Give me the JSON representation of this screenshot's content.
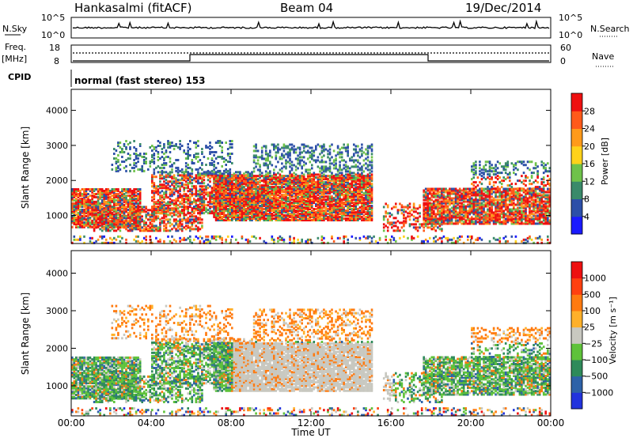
{
  "header": {
    "station": "Hankasalmi (fitACF)",
    "beam": "Beam 04",
    "date": "19/Dec/2014"
  },
  "noise_panel": {
    "left_label": "N.Sky",
    "right_label": "N.Search",
    "left_ticks": [
      "10^5",
      "10^0"
    ],
    "right_ticks": [
      "10^5",
      "10^0"
    ]
  },
  "freq_panel": {
    "left_label_line1": "Freq.",
    "left_label_line2": "[MHz]",
    "left_ticks": [
      "18",
      "8"
    ],
    "right_label": "Nave",
    "right_ticks": [
      "60",
      "0"
    ]
  },
  "cpid": {
    "label": "CPID",
    "value": "normal (fast stereo) 153"
  },
  "x_axis": {
    "label": "Time UT",
    "ticks": [
      "00:00",
      "04:00",
      "08:00",
      "12:00",
      "16:00",
      "20:00",
      "00:00"
    ]
  },
  "chart_data": [
    {
      "type": "heatmap",
      "panel": "power",
      "ylabel": "Slant Range [km]",
      "y_ticks": [
        1000,
        2000,
        3000,
        4000
      ],
      "ylim": [
        200,
        4600
      ],
      "xlim_hours": [
        0,
        24
      ],
      "colorbar_label": "Power [dB]",
      "colorbar_ticks": [
        "28",
        "24",
        "20",
        "16",
        "12",
        "8",
        "4"
      ],
      "colors": [
        "#1a1aff",
        "#2c4fa8",
        "#3a8a6a",
        "#6fc24a",
        "#ffd21a",
        "#ff9a1a",
        "#ff5a1a",
        "#ee1010"
      ]
    },
    {
      "type": "heatmap",
      "panel": "velocity",
      "ylabel": "Slant Range [km]",
      "y_ticks": [
        1000,
        2000,
        3000,
        4000
      ],
      "ylim": [
        200,
        4600
      ],
      "xlim_hours": [
        0,
        24
      ],
      "colorbar_label": "Velocity [m s⁻¹]",
      "colorbar_ticks": [
        "1000",
        "500",
        "100",
        "25",
        "−25",
        "−100",
        "−500",
        "−1000"
      ],
      "colors": [
        "#2233dd",
        "#2e62a8",
        "#2e8a5a",
        "#5ec23a",
        "#c8c8c0",
        "#ffb02a",
        "#ff7a10",
        "#ff4010",
        "#ee1010"
      ]
    }
  ]
}
